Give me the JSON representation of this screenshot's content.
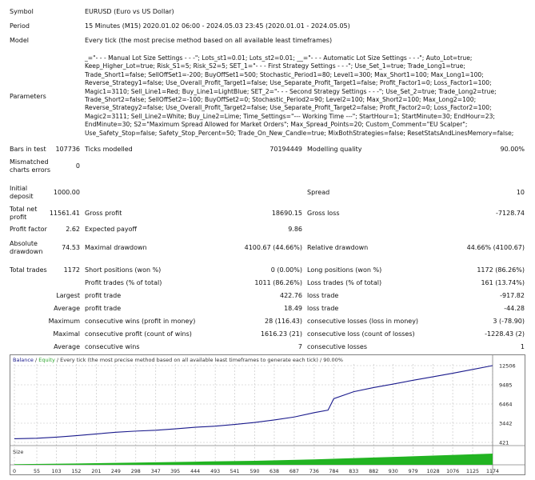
{
  "header": {
    "symbol_label": "Symbol",
    "symbol_value": "EURUSD (Euro vs US Dollar)",
    "period_label": "Period",
    "period_value": "15 Minutes (M15) 2020.01.02 06:00 - 2024.05.03 23:45 (2020.01.01 - 2024.05.05)",
    "model_label": "Model",
    "model_value": "Every tick (the most precise method based on all available least timeframes)",
    "parameters_label": "Parameters",
    "parameters_lines": [
      "_=\"- - - Manual Lot Size Settings - - -\"; Lots_st1=0.01; Lots_st2=0.01; __=\"- - - Automatic Lot Size Settings - - -\"; Auto_Lot=true;",
      "Keep_Higher_Lot=true; Risk_S1=5; Risk_S2=5; SET_1=\"- - - First Strategy Settings - - -\"; Use_Set_1=true; Trade_Long1=true;",
      "Trade_Short1=false; SellOffSet1=-200; BuyOffSet1=500; Stochastic_Period1=80; Level1=300; Max_Short1=100; Max_Long1=100;",
      "Reverse_Strategy1=false; Use_Overall_Profit_Target1=false; Use_Separate_Profit_Target1=false; Profit_Factor1=0; Loss_Factor1=100;",
      "Magic1=3110; Sell_Line1=Red; Buy_Line1=LightBlue; SET_2=\"- - - Second Strategy Settings - - -\"; Use_Set_2=true; Trade_Long2=true;",
      "Trade_Short2=false; SellOffSet2=-100; BuyOffSet2=0; Stochastic_Period2=90; Level2=100; Max_Short2=100; Max_Long2=100;",
      "Reverse_Strategy2=false; Use_Overall_Profit_Target2=false; Use_Separate_Profit_Target2=false; Profit_Factor2=0; Loss_Factor2=100;",
      "Magic2=3111; Sell_Line2=White; Buy_Line2=Lime; Time_Settings=\"--- Working Time ---\"; StartHour=1; StartMinute=30; EndHour=23;",
      "EndMinute=30; S2=\"Maximum Spread Allowed for Market Orders\"; Max_Spread_Points=20; Custom_Comment=\"EU Scalper\";",
      "Use_Safety_Stop=false; Safety_Stop_Percent=50; Trade_On_New_Candle=true; MixBothStrategies=false; ResetStatsAndLinesMemory=false;"
    ]
  },
  "stats": {
    "bars_in_test_label": "Bars in test",
    "bars_in_test_value": "107736",
    "ticks_modelled_label": "Ticks modelled",
    "ticks_modelled_value": "70194449",
    "modelling_quality_label": "Modelling quality",
    "modelling_quality_value": "90.00%",
    "mismatched_label_1": "Mismatched",
    "mismatched_label_2": "charts errors",
    "mismatched_value": "0",
    "initial_deposit_label_1": "Initial",
    "initial_deposit_label_2": "deposit",
    "initial_deposit_value": "1000.00",
    "spread_label": "Spread",
    "spread_value": "10",
    "total_net_label_1": "Total net",
    "total_net_label_2": "profit",
    "total_net_value": "11561.41",
    "gross_profit_label": "Gross profit",
    "gross_profit_value": "18690.15",
    "gross_loss_label": "Gross loss",
    "gross_loss_value": "-7128.74",
    "profit_factor_label": "Profit factor",
    "profit_factor_value": "2.62",
    "expected_payoff_label": "Expected payoff",
    "expected_payoff_value": "9.86",
    "absolute_dd_label_1": "Absolute",
    "absolute_dd_label_2": "drawdown",
    "absolute_dd_value": "74.53",
    "maximal_dd_label": "Maximal drawdown",
    "maximal_dd_value": "4100.67 (44.66%)",
    "relative_dd_label": "Relative drawdown",
    "relative_dd_value": "44.66% (4100.67)",
    "total_trades_label": "Total trades",
    "total_trades_value": "1172",
    "short_positions_label": "Short positions (won %)",
    "short_positions_value": "0 (0.00%)",
    "long_positions_label": "Long positions (won %)",
    "long_positions_value": "1172 (86.26%)",
    "profit_trades_label": "Profit trades (% of total)",
    "profit_trades_value": "1011 (86.26%)",
    "loss_trades_label": "Loss trades (% of total)",
    "loss_trades_value": "161 (13.74%)",
    "largest_label": "Largest",
    "largest_profit_label": "profit trade",
    "largest_profit_value": "422.76",
    "largest_loss_label": "loss trade",
    "largest_loss_value": "-917.82",
    "average_label": "Average",
    "average_profit_label": "profit trade",
    "average_profit_value": "18.49",
    "average_loss_label": "loss trade",
    "average_loss_value": "-44.28",
    "maximum_label": "Maximum",
    "max_cons_wins_label": "consecutive wins (profit in money)",
    "max_cons_wins_value": "28 (116.43)",
    "max_cons_losses_label": "consecutive losses (loss in money)",
    "max_cons_losses_value": "3 (-78.90)",
    "maximal_label": "Maximal",
    "maximal_cons_profit_label": "consecutive profit (count of wins)",
    "maximal_cons_profit_value": "1616.23 (21)",
    "maximal_cons_loss_label": "consecutive loss (count of losses)",
    "maximal_cons_loss_value": "-1228.43 (2)",
    "average2_label": "Average",
    "avg_cons_wins_label": "consecutive wins",
    "avg_cons_wins_value": "7",
    "avg_cons_losses_label": "consecutive losses",
    "avg_cons_losses_value": "1"
  },
  "chart_data": {
    "type": "line",
    "legend_balance": "Balance",
    "legend_sep": " / ",
    "legend_equity": "Equity",
    "legend_rest": " / Every tick (the most precise method based on all available least timeframes to generate each tick) / 90.00%",
    "y_ticks": [
      "12506",
      "9485",
      "6464",
      "3442",
      "421"
    ],
    "ylim": [
      421,
      12506
    ],
    "x_ticks": [
      "0",
      "55",
      "103",
      "152",
      "201",
      "249",
      "298",
      "347",
      "395",
      "444",
      "493",
      "541",
      "590",
      "638",
      "687",
      "736",
      "784",
      "833",
      "882",
      "930",
      "979",
      "1028",
      "1076",
      "1125",
      "1174"
    ],
    "xlim": [
      0,
      1174
    ],
    "size_label": "Size",
    "colors": {
      "balance": "#1a1a8c",
      "equity": "#2ea62e",
      "size_fill": "#22b422",
      "grid": "#c0c0c0"
    },
    "series": [
      {
        "name": "Balance",
        "x": [
          0,
          55,
          103,
          152,
          201,
          249,
          298,
          347,
          395,
          444,
          493,
          541,
          590,
          638,
          687,
          736,
          770,
          784,
          833,
          882,
          930,
          979,
          1028,
          1076,
          1125,
          1174
        ],
        "values": [
          1000,
          1080,
          1250,
          1480,
          1750,
          2020,
          2200,
          2330,
          2550,
          2800,
          2980,
          3250,
          3560,
          3950,
          4420,
          5100,
          5500,
          7300,
          8400,
          9050,
          9600,
          10200,
          10750,
          11300,
          11900,
          12506
        ]
      }
    ],
    "size_series": {
      "x": [
        0,
        152,
        298,
        444,
        590,
        736,
        882,
        1028,
        1174
      ],
      "values": [
        0.05,
        0.12,
        0.2,
        0.28,
        0.36,
        0.48,
        0.65,
        0.82,
        1.0
      ]
    }
  }
}
